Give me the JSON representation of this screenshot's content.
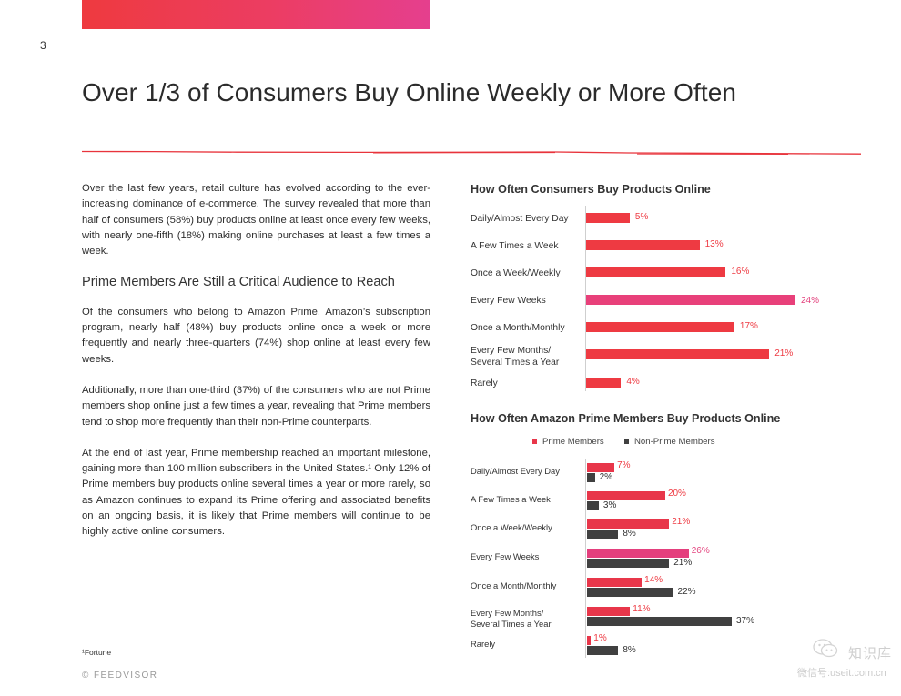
{
  "page_number": "3",
  "title": "Over 1/3 of Consumers Buy Online Weekly or More Often",
  "body": {
    "p1": "Over the last few years, retail culture has evolved according to the ever-increasing dominance of e-commerce. The survey revealed that more than half of consumers (58%) buy products online at least once every few weeks, with nearly one-fifth (18%) making online purchases at least a few times a week.",
    "heading": "Prime Members Are Still a Critical Audience to Reach",
    "p2": "Of the consumers who belong to Amazon Prime, Amazon’s subscription program, nearly half (48%) buy products online once a week or more frequently and nearly three-quarters (74%) shop online at least every few weeks.",
    "p3": "Additionally, more than one-third (37%) of the consumers who are not Prime members shop online just a few times a year, revealing that Prime members tend to shop more frequently than their non-Prime counterparts.",
    "p4": "At the end of last year, Prime membership reached an important milestone, gaining more than 100 million subscribers in the United States.¹ Only 12% of Prime members buy products online several times a year or more rarely, so as Amazon continues to expand its Prime offering and associated benefits on an ongoing basis, it is likely that Prime members will continue to be highly active online consumers."
  },
  "footnote": "¹Fortune",
  "copyright": "© FEEDVISOR",
  "watermark": {
    "line1": "知识库",
    "line2": "微信号:useit.com.cn"
  },
  "colors": {
    "accent": "#ee3a42",
    "highlight": "#e8407a",
    "dark": "#404040"
  },
  "chart_data": [
    {
      "type": "bar",
      "orientation": "horizontal",
      "title": "How Often Consumers Buy Products Online",
      "categories": [
        "Daily/Almost Every Day",
        "A Few Times a Week",
        "Once a Week/Weekly",
        "Every Few Weeks",
        "Once a Month/Monthly",
        "Every Few Months/ Several Times a Year",
        "Rarely"
      ],
      "values": [
        5,
        13,
        16,
        24,
        17,
        21,
        4
      ],
      "value_labels": [
        "5%",
        "13%",
        "16%",
        "24%",
        "17%",
        "21%",
        "4%"
      ],
      "unit": "%",
      "highlight_index": 3,
      "xlim": [
        0,
        24
      ]
    },
    {
      "type": "bar",
      "orientation": "horizontal",
      "title": "How Often Amazon Prime Members Buy Products Online",
      "legend_position": "top",
      "categories": [
        "Daily/Almost Every Day",
        "A Few Times a Week",
        "Once a Week/Weekly",
        "Every Few Weeks",
        "Once a Month/Monthly",
        "Every Few Months/ Several Times a Year",
        "Rarely"
      ],
      "series": [
        {
          "name": "Prime Members",
          "color": "#e8364a",
          "values": [
            7,
            20,
            21,
            26,
            14,
            11,
            1
          ],
          "labels": [
            "7%",
            "20%",
            "21%",
            "26%",
            "14%",
            "11%",
            "1%"
          ]
        },
        {
          "name": "Non-Prime Members",
          "color": "#404040",
          "values": [
            2,
            3,
            8,
            21,
            22,
            37,
            8
          ],
          "labels": [
            "2%",
            "3%",
            "8%",
            "21%",
            "22%",
            "37%",
            "8%"
          ]
        }
      ],
      "highlight_index": 3,
      "unit": "%",
      "xlim": [
        0,
        37
      ]
    }
  ]
}
